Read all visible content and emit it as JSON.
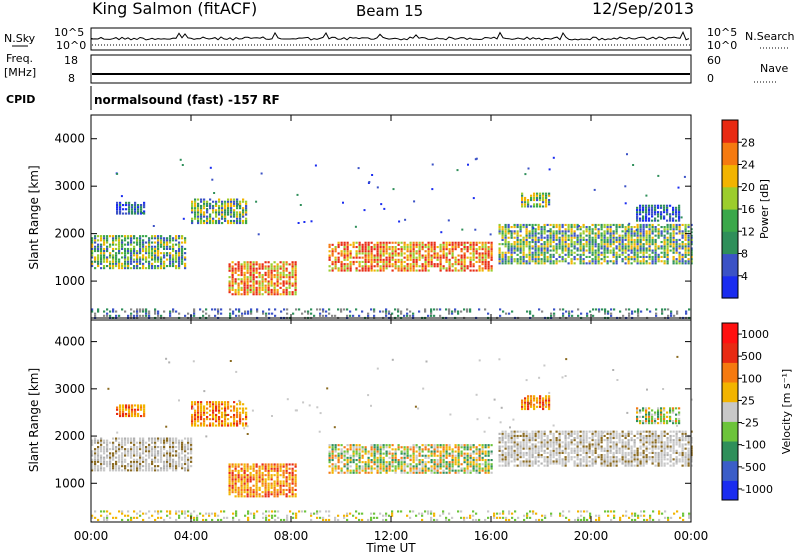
{
  "header": {
    "station": "King Salmon (fitACF)",
    "beam": "Beam 15",
    "date": "12/Sep/2013"
  },
  "noise_panel": {
    "left_label": "N.Sky",
    "right_label": "N.Search",
    "ticks": [
      "10^5",
      "10^0"
    ]
  },
  "freq_panel": {
    "left_label_1": "Freq.",
    "left_label_2": "[MHz]",
    "left_ticks": [
      "18",
      "8"
    ],
    "right_label": "Nave",
    "right_ticks": [
      "60",
      "0"
    ]
  },
  "cpid": {
    "label": "CPID",
    "text": "normalsound (fast) -157 RF"
  },
  "chart_data": [
    {
      "type": "heatmap",
      "name_key": "power",
      "ylabel": "Slant Range [km]",
      "ylim": [
        180,
        4500
      ],
      "yticks": [
        1000,
        2000,
        3000,
        4000
      ],
      "xlim": [
        0,
        24
      ],
      "xtick_labels": [
        "00:00",
        "04:00",
        "08:00",
        "12:00",
        "16:00",
        "20:00",
        "00:00"
      ],
      "colorbar": {
        "label": "Power [dB]",
        "ticks": [
          "4",
          "8",
          "12",
          "16",
          "20",
          "24",
          "28"
        ],
        "colors": [
          "#1a2cf0",
          "#3b52c6",
          "#2f8f5a",
          "#3aa84a",
          "#9ccd2c",
          "#f2b400",
          "#f57a10",
          "#e82a12"
        ]
      },
      "scatter_bands": [
        {
          "t0": 0.0,
          "t1": 3.8,
          "r0": 1250,
          "r1": 1950,
          "level": "mid"
        },
        {
          "t0": 1.0,
          "t1": 2.2,
          "r0": 2400,
          "r1": 2650,
          "level": "low"
        },
        {
          "t0": 4.0,
          "t1": 6.2,
          "r0": 2200,
          "r1": 2700,
          "level": "mid"
        },
        {
          "t0": 5.5,
          "t1": 8.2,
          "r0": 700,
          "r1": 1400,
          "level": "high"
        },
        {
          "t0": 9.5,
          "t1": 16.0,
          "r0": 1200,
          "r1": 1800,
          "level": "high"
        },
        {
          "t0": 16.3,
          "t1": 24.0,
          "r0": 1350,
          "r1": 2200,
          "level": "mid"
        },
        {
          "t0": 17.2,
          "t1": 18.4,
          "r0": 2550,
          "r1": 2850,
          "level": "mid"
        },
        {
          "t0": 21.8,
          "t1": 23.6,
          "r0": 2250,
          "r1": 2600,
          "level": "low"
        },
        {
          "t0": 0.0,
          "t1": 24.0,
          "r0": 200,
          "r1": 420,
          "level": "ground"
        }
      ]
    },
    {
      "type": "heatmap",
      "name_key": "velocity",
      "ylabel": "Slant Range [km]",
      "ylim": [
        180,
        4500
      ],
      "yticks": [
        1000,
        2000,
        3000,
        4000
      ],
      "xlim": [
        0,
        24
      ],
      "xlabel": "Time UT",
      "xtick_labels": [
        "00:00",
        "04:00",
        "08:00",
        "12:00",
        "16:00",
        "20:00",
        "00:00"
      ],
      "colorbar": {
        "label": "Velocity [m s⁻¹]",
        "ticks": [
          "1000",
          "500",
          "100",
          "25",
          "-25",
          "-100",
          "-500",
          "-1000"
        ],
        "colors": [
          "#1a2cf0",
          "#3b5ec8",
          "#2f8f5a",
          "#6cc43a",
          "#c8c8c8",
          "#f2b400",
          "#f57a10",
          "#e82a12",
          "#ff1010"
        ]
      },
      "scatter_bands": [
        {
          "t0": 0.0,
          "t1": 4.0,
          "r0": 1250,
          "r1": 1950,
          "level": "grey"
        },
        {
          "t0": 1.0,
          "t1": 2.2,
          "r0": 2400,
          "r1": 2650,
          "level": "orange"
        },
        {
          "t0": 4.0,
          "t1": 6.2,
          "r0": 2200,
          "r1": 2700,
          "level": "orange"
        },
        {
          "t0": 5.5,
          "t1": 8.2,
          "r0": 700,
          "r1": 1400,
          "level": "orange"
        },
        {
          "t0": 9.5,
          "t1": 16.0,
          "r0": 1200,
          "r1": 1800,
          "level": "green"
        },
        {
          "t0": 16.3,
          "t1": 24.0,
          "r0": 1350,
          "r1": 2100,
          "level": "grey"
        },
        {
          "t0": 17.2,
          "t1": 18.4,
          "r0": 2550,
          "r1": 2850,
          "level": "orange"
        },
        {
          "t0": 21.8,
          "t1": 23.6,
          "r0": 2250,
          "r1": 2600,
          "level": "green"
        },
        {
          "t0": 0.0,
          "t1": 24.0,
          "r0": 200,
          "r1": 420,
          "level": "ground"
        }
      ]
    }
  ]
}
